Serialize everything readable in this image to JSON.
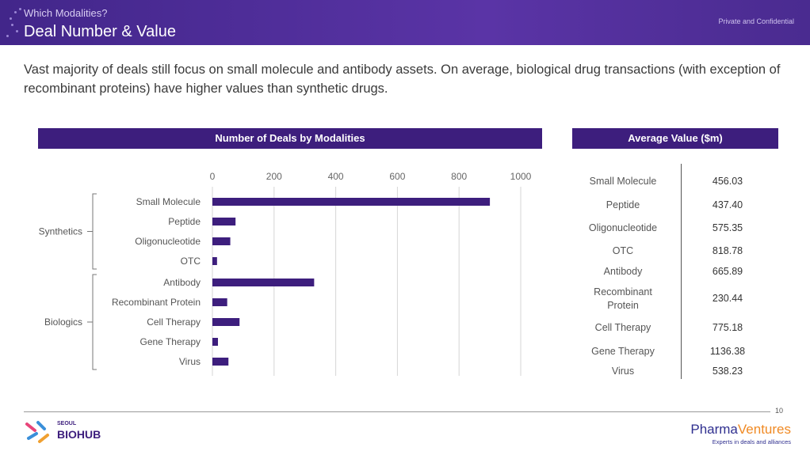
{
  "header": {
    "supertitle": "Which Modalities?",
    "title": "Deal Number & Value",
    "confidential": "Private and Confidential"
  },
  "intro": "Vast majority of deals still focus on small molecule and antibody assets. On average, biological drug transactions (with exception of recombinant proteins) have higher values than synthetic drugs.",
  "chart_data": [
    {
      "type": "bar",
      "orientation": "horizontal",
      "title": "Number of Deals by Modalities",
      "categories": [
        "Small Molecule",
        "Peptide",
        "Oligonucleotide",
        "OTC",
        "Antibody",
        "Recombinant Protein",
        "Cell Therapy",
        "Gene Therapy",
        "Virus"
      ],
      "values": [
        900,
        75,
        58,
        15,
        330,
        48,
        88,
        18,
        52
      ],
      "groups": [
        {
          "label": "Synthetics",
          "members": [
            "Small Molecule",
            "Peptide",
            "Oligonucleotide",
            "OTC"
          ]
        },
        {
          "label": "Biologics",
          "members": [
            "Antibody",
            "Recombinant Protein",
            "Cell Therapy",
            "Gene Therapy",
            "Virus"
          ]
        }
      ],
      "xticks": [
        0,
        200,
        400,
        600,
        800,
        1000
      ],
      "xlim": [
        0,
        1000
      ],
      "grid": true,
      "color": "#3d1e7d"
    },
    {
      "type": "table",
      "title": "Average Value ($m)",
      "rows": [
        {
          "label": "Small Molecule",
          "value": "456.03"
        },
        {
          "label": "Peptide",
          "value": "437.40"
        },
        {
          "label": "Oligonucleotide",
          "value": "575.35"
        },
        {
          "label": "OTC",
          "value": "818.78"
        },
        {
          "label": "Antibody",
          "value": "665.89"
        },
        {
          "label": "Recombinant Protein",
          "value": "230.44"
        },
        {
          "label": "Cell Therapy",
          "value": "775.18"
        },
        {
          "label": "Gene Therapy",
          "value": "1136.38"
        },
        {
          "label": "Virus",
          "value": "538.23"
        }
      ]
    }
  ],
  "footer": {
    "page_number": "10",
    "left_logo_small": "SEOUL",
    "left_logo": "BIOHUB",
    "right_logo_a": "Pharma",
    "right_logo_b": "Ventures",
    "right_tagline": "Experts in deals and alliances"
  }
}
